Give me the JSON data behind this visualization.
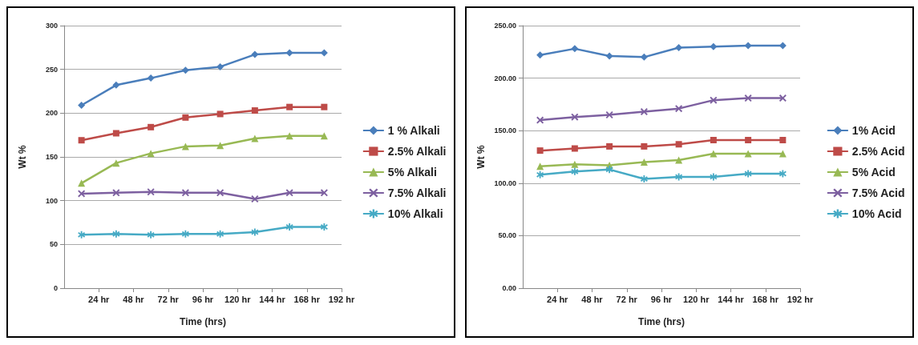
{
  "chart_data": [
    {
      "type": "line",
      "xlabel": "Time (hrs)",
      "ylabel": "Wt %",
      "x": [
        12,
        36,
        60,
        84,
        108,
        132,
        156,
        180
      ],
      "xlim": [
        0,
        192
      ],
      "xticks": [
        {
          "value": 24,
          "label": "24 hr"
        },
        {
          "value": 48,
          "label": "48 hr"
        },
        {
          "value": 72,
          "label": "72 hr"
        },
        {
          "value": 96,
          "label": "96 hr"
        },
        {
          "value": 120,
          "label": "120 hr"
        },
        {
          "value": 144,
          "label": "144 hr"
        },
        {
          "value": 168,
          "label": "168 hr"
        },
        {
          "value": 192,
          "label": "192 hr"
        }
      ],
      "ylim": [
        0,
        300
      ],
      "yticks": [
        0,
        50,
        100,
        150,
        200,
        250,
        300
      ],
      "grid": "y",
      "legend": "right",
      "series": [
        {
          "name": "1 % Alkali",
          "color": "#4a7ebb",
          "marker": "diamond",
          "values": [
            209,
            232,
            240,
            249,
            253,
            267,
            269,
            269
          ]
        },
        {
          "name": "2.5% Alkali",
          "color": "#be4b48",
          "marker": "square",
          "values": [
            169,
            177,
            184,
            195,
            199,
            203,
            207,
            207
          ]
        },
        {
          "name": "5% Alkali",
          "color": "#98b954",
          "marker": "triangle",
          "values": [
            120,
            143,
            154,
            162,
            163,
            171,
            174,
            174
          ]
        },
        {
          "name": "7.5% Alkali",
          "color": "#7d60a0",
          "marker": "cross",
          "values": [
            108,
            109,
            110,
            109,
            109,
            102,
            109,
            109
          ]
        },
        {
          "name": "10% Alkali",
          "color": "#46aac5",
          "marker": "star",
          "values": [
            61,
            62,
            61,
            62,
            62,
            64,
            70,
            70
          ]
        }
      ]
    },
    {
      "type": "line",
      "xlabel": "Time (hrs)",
      "ylabel": "Wt %",
      "x": [
        12,
        36,
        60,
        84,
        108,
        132,
        156,
        180
      ],
      "xlim": [
        0,
        192
      ],
      "xticks": [
        {
          "value": 24,
          "label": "24 hr"
        },
        {
          "value": 48,
          "label": "48 hr"
        },
        {
          "value": 72,
          "label": "72 hr"
        },
        {
          "value": 96,
          "label": "96 hr"
        },
        {
          "value": 120,
          "label": "120 hr"
        },
        {
          "value": 144,
          "label": "144 hr"
        },
        {
          "value": 168,
          "label": "168 hr"
        },
        {
          "value": 192,
          "label": "192 hr"
        }
      ],
      "ylim": [
        0,
        250
      ],
      "yticks": [
        {
          "value": 0,
          "label": "0.00"
        },
        {
          "value": 50,
          "label": "50.00"
        },
        {
          "value": 100,
          "label": "100.00"
        },
        {
          "value": 150,
          "label": "150.00"
        },
        {
          "value": 200,
          "label": "200.00"
        },
        {
          "value": 250,
          "label": "250.00"
        }
      ],
      "grid": "y",
      "legend": "right",
      "series": [
        {
          "name": "1% Acid",
          "color": "#4a7ebb",
          "marker": "diamond",
          "values": [
            222,
            228,
            221,
            220,
            229,
            230,
            231,
            231
          ]
        },
        {
          "name": "2.5% Acid",
          "color": "#be4b48",
          "marker": "square",
          "values": [
            131,
            133,
            135,
            135,
            137,
            141,
            141,
            141
          ]
        },
        {
          "name": "5% Acid",
          "color": "#98b954",
          "marker": "triangle",
          "values": [
            116,
            118,
            117,
            120,
            122,
            128,
            128,
            128
          ]
        },
        {
          "name": "7.5% Acid",
          "color": "#7d60a0",
          "marker": "cross",
          "values": [
            160,
            163,
            165,
            168,
            171,
            179,
            181,
            181
          ]
        },
        {
          "name": "10% Acid",
          "color": "#46aac5",
          "marker": "star",
          "values": [
            108,
            111,
            113,
            104,
            106,
            106,
            109,
            109
          ]
        }
      ]
    }
  ]
}
